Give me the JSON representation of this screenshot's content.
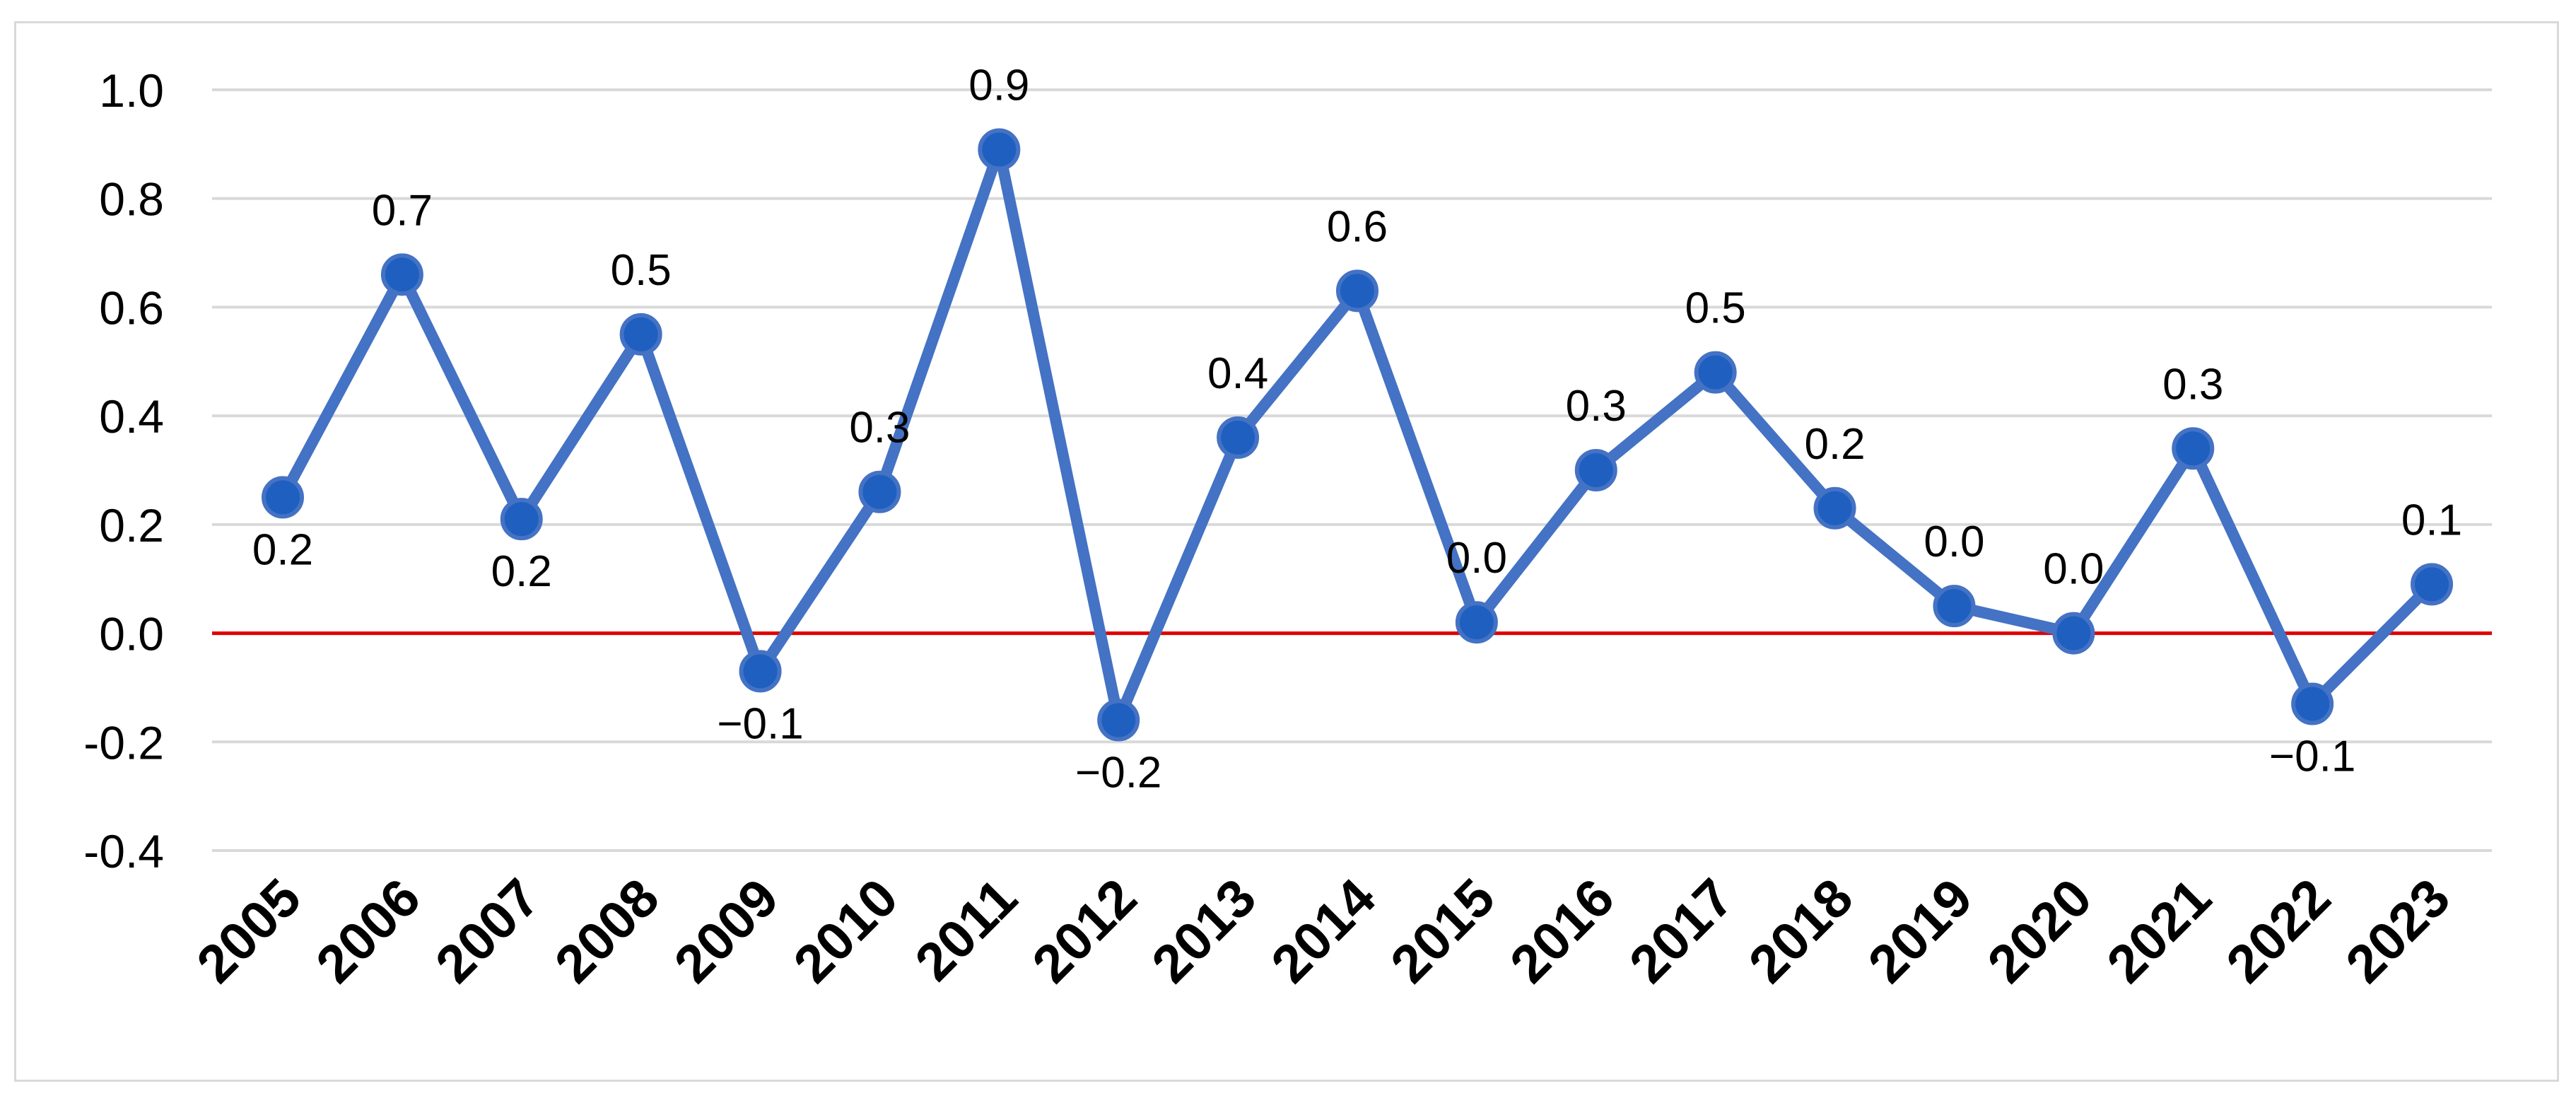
{
  "chart_data": {
    "type": "line",
    "title": "",
    "xlabel": "",
    "ylabel": "",
    "categories": [
      "2005",
      "2006",
      "2007",
      "2008",
      "2009",
      "2010",
      "2011",
      "2012",
      "2013",
      "2014",
      "2015",
      "2016",
      "2017",
      "2018",
      "2019",
      "2020",
      "2021",
      "2022",
      "2023"
    ],
    "series": [
      {
        "values": [
          0.25,
          0.66,
          0.21,
          0.55,
          -0.07,
          0.26,
          0.89,
          -0.16,
          0.36,
          0.63,
          0.02,
          0.3,
          0.48,
          0.23,
          0.05,
          0.0,
          0.34,
          -0.13,
          0.09
        ],
        "labels": [
          "0.2",
          "0.7",
          "0.2",
          "0.5",
          "−0.1",
          "0.3",
          "0.9",
          "−0.2",
          "0.4",
          "0.6",
          "0.0",
          "0.3",
          "0.5",
          "0.2",
          "0.0",
          "0.0",
          "0.3",
          "−0.1",
          "0.1"
        ],
        "color": "#4472c4"
      }
    ],
    "ylim": [
      -0.4,
      1.0
    ],
    "yticks": [
      1.0,
      0.8,
      0.6,
      0.4,
      0.2,
      0.0,
      -0.2,
      -0.4
    ],
    "ytick_labels": [
      "1.0",
      "0.8",
      "0.6",
      "0.4",
      "0.2",
      "0.0",
      "-0.2",
      "-0.4"
    ],
    "grid": true,
    "reference_line": {
      "y": 0.0,
      "color": "#e00000"
    },
    "marker_fill": "#1f5fbf",
    "legend": "none"
  }
}
